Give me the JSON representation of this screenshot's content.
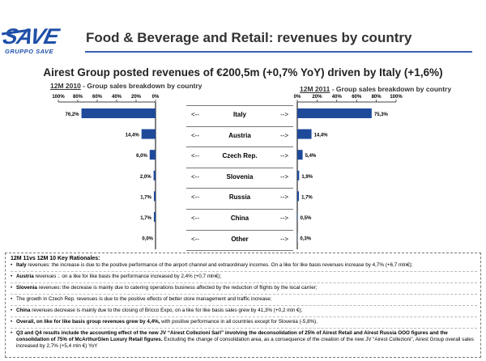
{
  "header": {
    "logo_text": "SAVE",
    "logo_sub": "GRUPPO SAVE",
    "title": "Food & Beverage and Retail: revenues by country",
    "headline": "Airest Group posted revenues of €200,5m (+0,7% YoY) driven by Italy (+1,6%)"
  },
  "chart_data": [
    {
      "type": "bar",
      "orientation": "horizontal",
      "direction": "right-to-left",
      "title_period": "12M 2010",
      "title_rest": " - Group sales breakdown by country",
      "xlim": [
        0,
        100
      ],
      "ticks": [
        "100%",
        "80%",
        "60%",
        "40%",
        "20%",
        "0%"
      ],
      "categories": [
        "Italy",
        "Austria",
        "Czech Rep.",
        "Slovenia",
        "Russia",
        "China",
        "Other"
      ],
      "values": [
        76.2,
        14.4,
        6.0,
        2.0,
        1.7,
        1.7,
        0.0
      ],
      "labels": [
        "76,2%",
        "14,4%",
        "6,0%",
        "2,0%",
        "1,7%",
        "1,7%",
        "0,0%"
      ]
    },
    {
      "type": "bar",
      "orientation": "horizontal",
      "direction": "left-to-right",
      "title_period": "12M 2011",
      "title_rest": " - Group sales breakdown by country",
      "xlim": [
        0,
        100
      ],
      "ticks": [
        "0%",
        "20%",
        "40%",
        "60%",
        "80%",
        "100%"
      ],
      "categories": [
        "Italy",
        "Austria",
        "Czech Rep.",
        "Slovenia",
        "Russia",
        "China",
        "Other"
      ],
      "values": [
        75.3,
        14.4,
        5.4,
        1.9,
        1.7,
        0.5,
        0.3
      ],
      "labels": [
        "75,3%",
        "14,4%",
        "5,4%",
        "1,9%",
        "1,7%",
        "0,5%",
        "0,3%"
      ]
    }
  ],
  "countries": [
    {
      "arrow_left": "<--",
      "name": "Italy",
      "arrow_right": "-->"
    },
    {
      "arrow_left": "<--",
      "name": "Austria",
      "arrow_right": "-->"
    },
    {
      "arrow_left": "<--",
      "name": "Czech Rep.",
      "arrow_right": "-->"
    },
    {
      "arrow_left": "<--",
      "name": "Slovenia",
      "arrow_right": "-->"
    },
    {
      "arrow_left": "<--",
      "name": "Russia",
      "arrow_right": "-->"
    },
    {
      "arrow_left": "<--",
      "name": "China",
      "arrow_right": "-->"
    },
    {
      "arrow_left": "<--",
      "name": "Other",
      "arrow_right": "-->"
    }
  ],
  "colors": {
    "bar": "#1f4a9a",
    "accent": "#3a5fb0"
  },
  "notes": {
    "heading": "12M 11vs 12M 10  Key Rationales:",
    "items": [
      {
        "bold": "Italy",
        "text": " revenues: the increase is due to the positive performance of the airport channel and extraordinary incomes. On a like for like basis revenues increase by 4,7% (+6,7 mln€);"
      },
      {
        "bold": "Austria",
        "text": " revenues :. on a like for like basis the performance increased by 2,4%  (+0,7 mln€);"
      },
      {
        "bold": "Slovenia",
        "text": " revenues: the decrease is mainly due to catering operations business affected by the reduction of flights by the local carrier;"
      },
      {
        "bold": "",
        "text": "The growth in Czech Rep. revenues is due to the positive effects of better store management and traffic increase;"
      },
      {
        "bold": "China",
        "text": " revenues decrease is mainly due to the closing of Bricco Expo, on a like for like basis sales grew by 41,3% (+0,2 mln €);"
      },
      {
        "bold": "Overall, on like for like basis group revenues grew by 4,4%,",
        "text": " with positive performance in all countries except  for Slovenia (-5,8%)."
      },
      {
        "bold": "Q3 and Q4  results include the accounting effect of the new JV “Airest Collezioni Sarl” involving the deconsolidation of 25% of Airest Retail and Airest Russia OOO figures and the consolidation  of 75% of McArthurGlen Luxury Retail figures.",
        "text": " Excluding the change of consolidation area, as a consequence of the creation of the new JV “Airest Collezioni”,  Airest Group overall sales increased by 2,7% (+5,4 mln €) YoY"
      }
    ]
  }
}
